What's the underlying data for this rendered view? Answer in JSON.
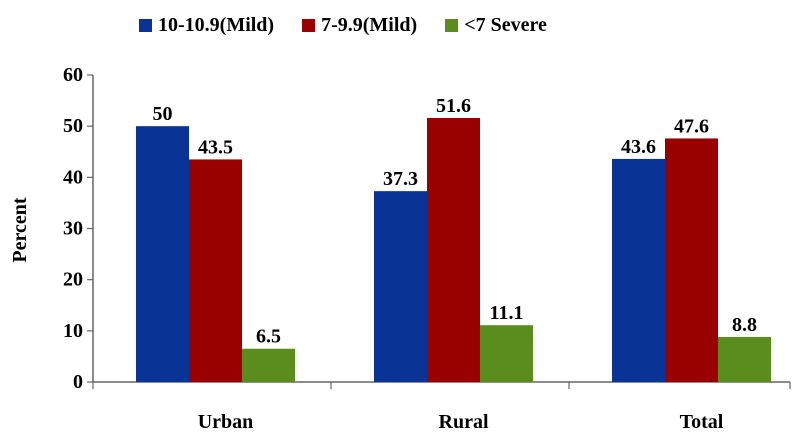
{
  "chart_data": {
    "type": "bar",
    "categories": [
      "Urban",
      "Rural",
      "Total"
    ],
    "series": [
      {
        "name": "10-10.9(Mild)",
        "values": [
          50,
          37.3,
          43.6
        ],
        "color": "#0a3396",
        "labels": [
          "50",
          "37.3",
          "43.6"
        ]
      },
      {
        "name": "7-9.9(Mild)",
        "values": [
          43.5,
          51.6,
          47.6
        ],
        "color": "#990000",
        "labels": [
          "43.5",
          "51.6",
          "47.6"
        ]
      },
      {
        "name": "<7 Severe",
        "values": [
          6.5,
          11.1,
          8.8
        ],
        "color": "#5b8c1e",
        "labels": [
          "6.5",
          "11.1",
          "8.8"
        ]
      }
    ],
    "ylabel": "Percent",
    "xlabel": "",
    "ylim": [
      0,
      60
    ],
    "yticks": [
      "0",
      "10",
      "20",
      "30",
      "40",
      "50",
      "60"
    ],
    "grid": false,
    "legend_position": "top"
  }
}
